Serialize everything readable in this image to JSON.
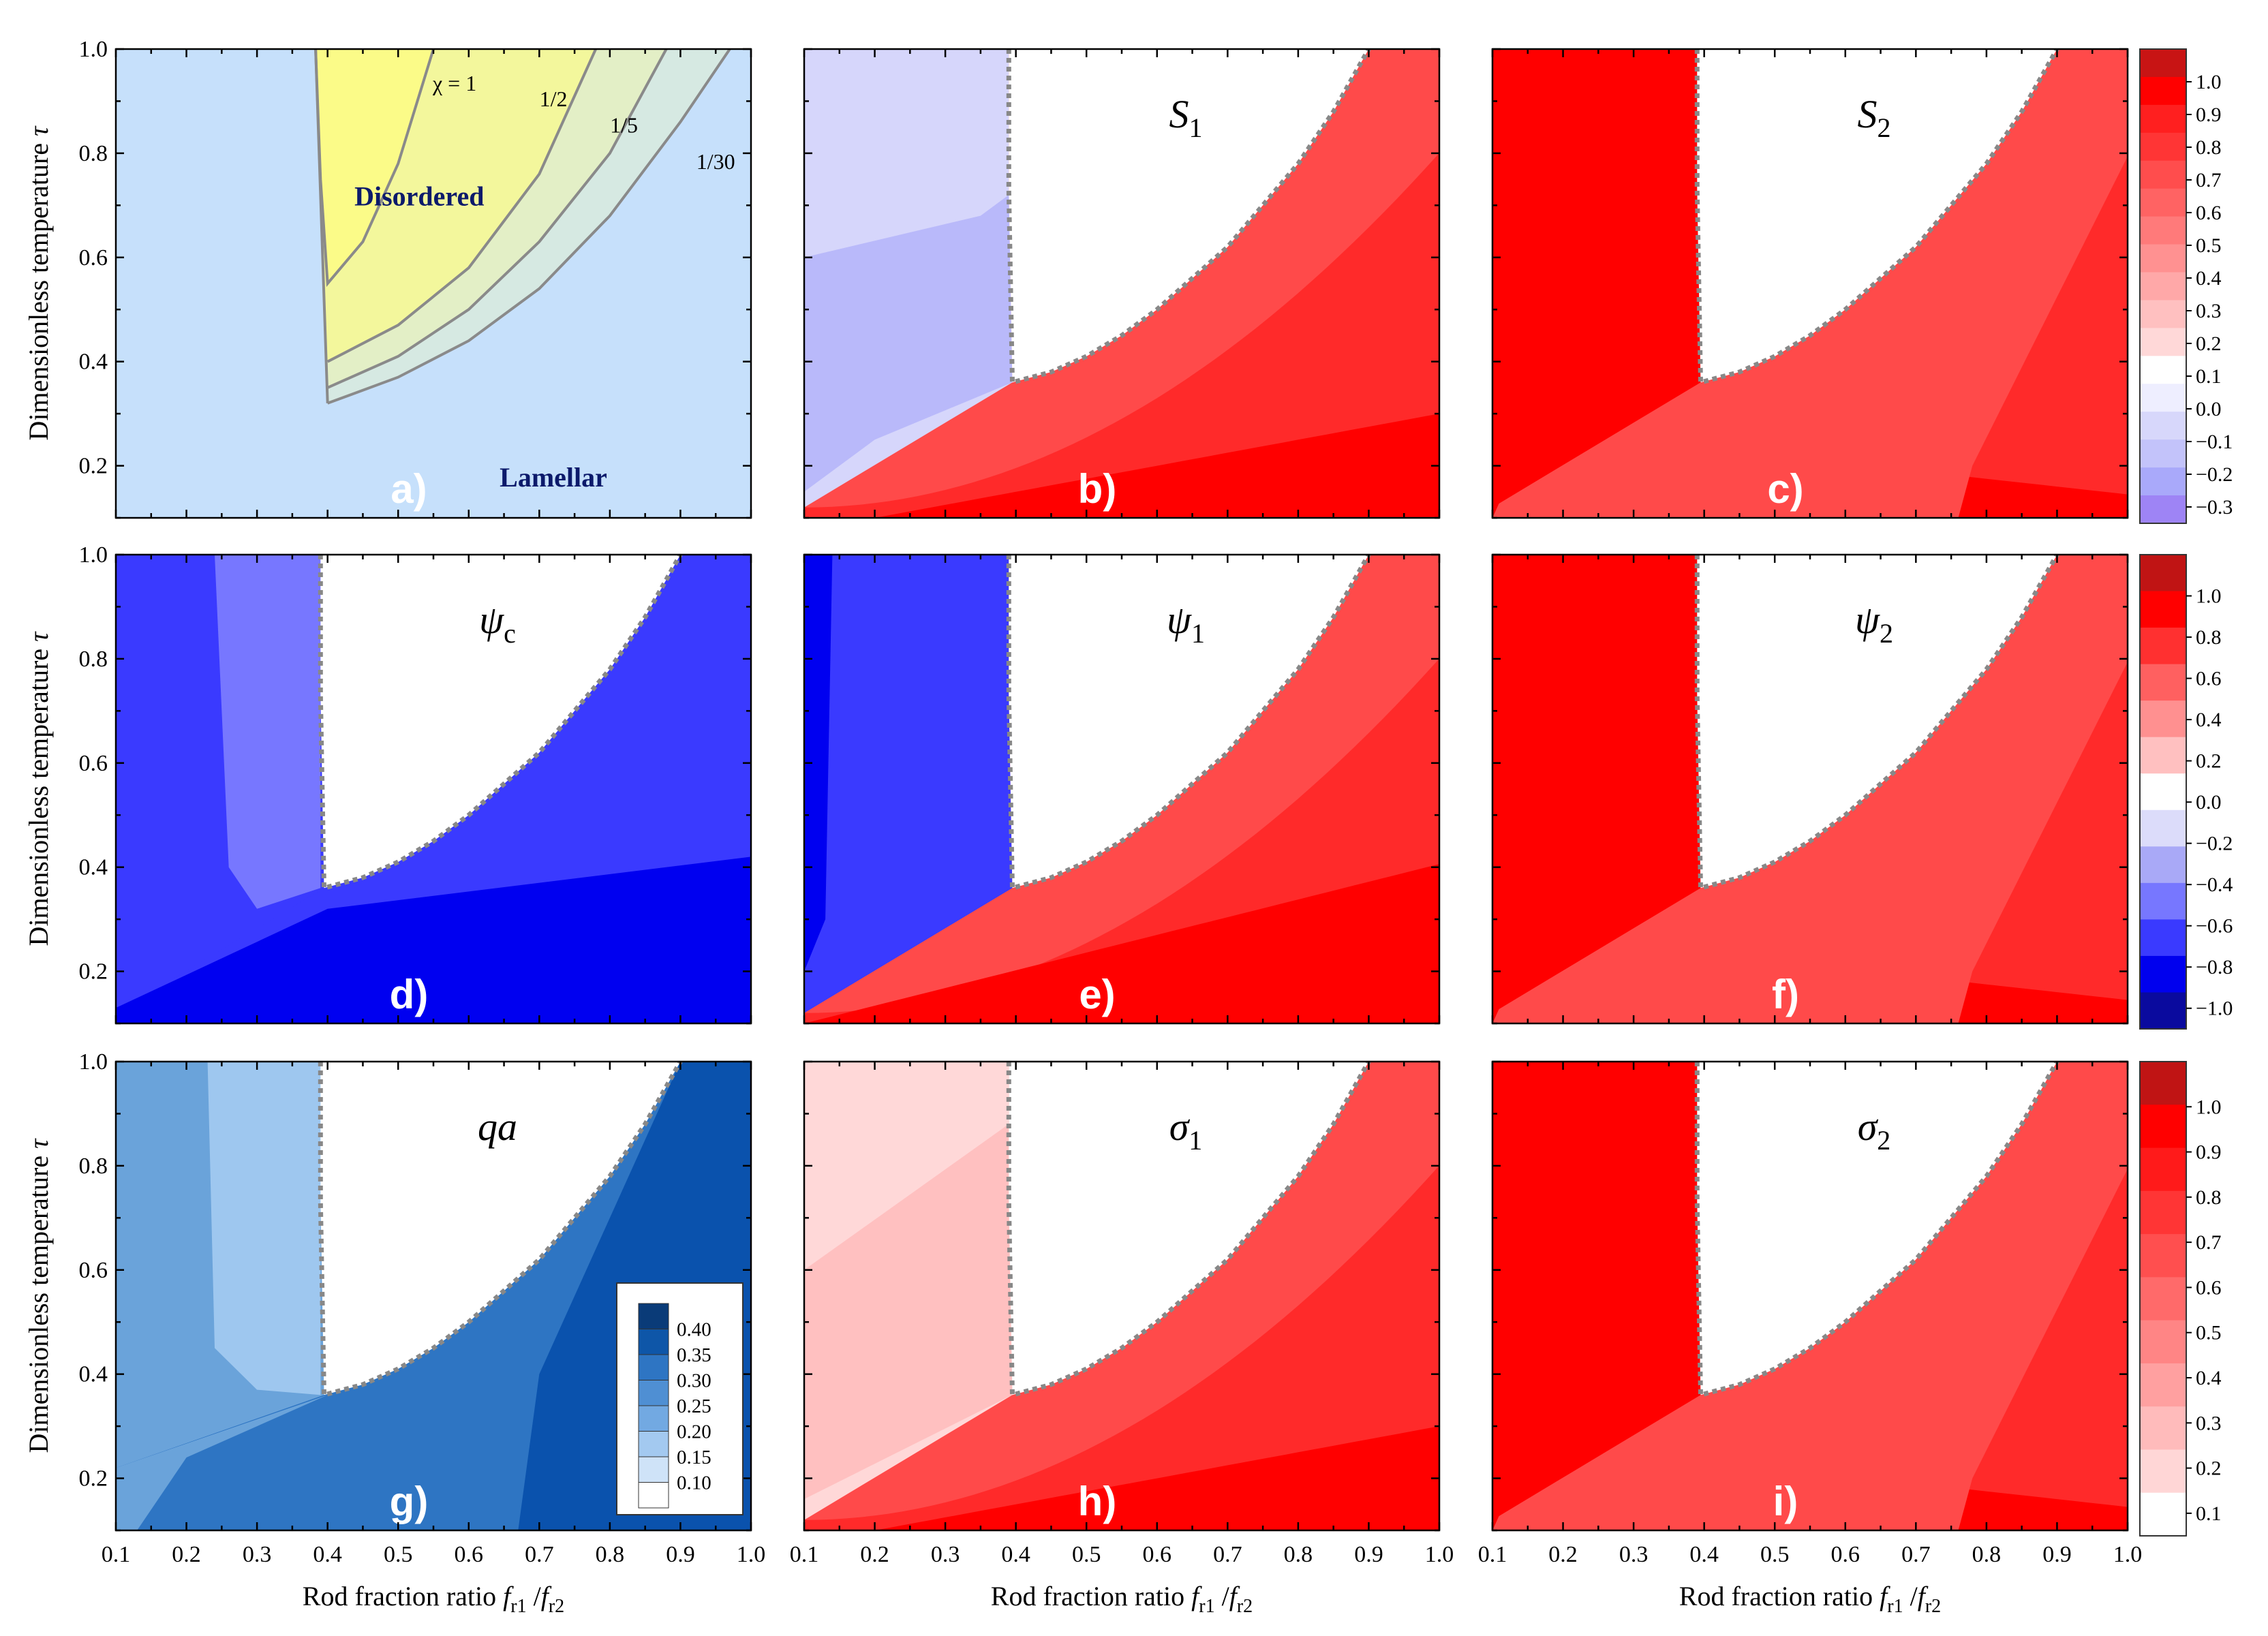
{
  "chart_data": {
    "type": "heatmap",
    "xlabel": "Rod fraction ratio f_r1 / f_r2",
    "xlabel_parts": {
      "main": "Rod fraction ratio ",
      "f1": "f",
      "s1": "r1",
      "slash": " /",
      "f2": "f",
      "s2": "r2"
    },
    "ylabel": "Dimensionless temperature τ",
    "ylabel_parts": {
      "main": "Dimensionless temperature ",
      "sym": "τ"
    },
    "xlim": [
      0.1,
      1.0
    ],
    "ylim": [
      0.1,
      1.0
    ],
    "x_ticks": [
      "0.1",
      "0.2",
      "0.3",
      "0.4",
      "0.5",
      "0.6",
      "0.7",
      "0.8",
      "0.9",
      "1.0"
    ],
    "y_ticks": [
      "0.2",
      "0.4",
      "0.6",
      "0.8",
      "1.0"
    ],
    "y_tick_values": [
      0.2,
      0.4,
      0.6,
      0.8,
      1.0
    ],
    "colors": {
      "lamellar_bg": "#c6e0fb",
      "disordered_core": "#fbfb88",
      "disordered_mid": "#f3f79c",
      "disordered_outer": "#e3efc6",
      "disordered_outer2": "#d6e9e2",
      "boundary_line": "#8a8a8a",
      "dotted_boundary": "#888888",
      "red_dark": "#ff0000",
      "red_1": "#ff2a2a",
      "red_2": "#ff4a4a",
      "red_3": "#ff7070",
      "red_4": "#ffa0a0",
      "red_5": "#ffc0c0",
      "red_6": "#ffd8d8",
      "blue_dark": "#0000f0",
      "blue_1": "#3a3aff",
      "blue_2": "#7777ff",
      "blue_3": "#b9b9fa",
      "blue_4": "#d6d6fb",
      "qa_1": "#6aa3da",
      "qa_2": "#9ec7ef",
      "qa_3": "#2e75c3",
      "qa_4": "#0a52ad"
    },
    "panels": [
      {
        "id": "a",
        "letter": "a)",
        "title": "",
        "sub": ""
      },
      {
        "id": "b",
        "letter": "b)",
        "title": "S",
        "sub": "1"
      },
      {
        "id": "c",
        "letter": "c)",
        "title": "S",
        "sub": "2"
      },
      {
        "id": "d",
        "letter": "d)",
        "title": "ψ",
        "sub": "c"
      },
      {
        "id": "e",
        "letter": "e)",
        "title": "ψ",
        "sub": "1"
      },
      {
        "id": "f",
        "letter": "f)",
        "title": "ψ",
        "sub": "2"
      },
      {
        "id": "g",
        "letter": "g)",
        "title": "qa",
        "sub": ""
      },
      {
        "id": "h",
        "letter": "h)",
        "title": "σ",
        "sub": "1"
      },
      {
        "id": "i",
        "letter": "i)",
        "title": "σ",
        "sub": "2"
      }
    ],
    "phase_diagram": {
      "regions": [
        "Disordered",
        "Lamellar"
      ],
      "curves": [
        {
          "chi": "χ = 1",
          "label": "χ = 1",
          "points": [
            [
              0.383,
              1.0
            ],
            [
              0.39,
              0.75
            ],
            [
              0.4,
              0.55
            ],
            [
              0.45,
              0.63
            ],
            [
              0.5,
              0.78
            ],
            [
              0.55,
              1.0
            ]
          ]
        },
        {
          "chi": "1/2",
          "label": "1/2",
          "points": [
            [
              0.4,
              0.4
            ],
            [
              0.5,
              0.47
            ],
            [
              0.6,
              0.58
            ],
            [
              0.7,
              0.76
            ],
            [
              0.78,
              1.0
            ]
          ]
        },
        {
          "chi": "1/5",
          "label": "1/5",
          "points": [
            [
              0.4,
              0.35
            ],
            [
              0.5,
              0.41
            ],
            [
              0.6,
              0.5
            ],
            [
              0.7,
              0.63
            ],
            [
              0.8,
              0.8
            ],
            [
              0.88,
              1.0
            ]
          ]
        },
        {
          "chi": "1/30",
          "label": "1/30",
          "points": [
            [
              0.4,
              0.32
            ],
            [
              0.5,
              0.37
            ],
            [
              0.6,
              0.44
            ],
            [
              0.7,
              0.54
            ],
            [
              0.8,
              0.68
            ],
            [
              0.9,
              0.86
            ],
            [
              0.97,
              1.0
            ]
          ]
        }
      ],
      "wedge_left": [
        [
          0.383,
          1.0
        ],
        [
          0.4,
          0.32
        ]
      ]
    },
    "disordered_boundary": [
      [
        0.39,
        1.0
      ],
      [
        0.39,
        0.73
      ],
      [
        0.395,
        0.36
      ],
      [
        0.45,
        0.38
      ],
      [
        0.5,
        0.41
      ],
      [
        0.55,
        0.45
      ],
      [
        0.6,
        0.5
      ],
      [
        0.65,
        0.56
      ],
      [
        0.7,
        0.62
      ],
      [
        0.75,
        0.7
      ],
      [
        0.8,
        0.78
      ],
      [
        0.85,
        0.88
      ],
      [
        0.9,
        1.0
      ]
    ],
    "colorbars": [
      {
        "rows": "top",
        "labels": [
          "1.0",
          "0.9",
          "0.8",
          "0.7",
          "0.6",
          "0.5",
          "0.4",
          "0.3",
          "0.2",
          "0.1",
          "0.0",
          "−0.1",
          "−0.2",
          "−0.3"
        ],
        "range": [
          -0.35,
          1.1
        ]
      },
      {
        "rows": "middle",
        "labels": [
          "1.0",
          "0.8",
          "0.6",
          "0.4",
          "0.2",
          "0.0",
          "−0.2",
          "−0.4",
          "−0.6",
          "−0.8",
          "−1.0"
        ],
        "range": [
          -1.1,
          1.2
        ]
      },
      {
        "rows": "bottom",
        "labels": [
          "1.0",
          "0.9",
          "0.8",
          "0.7",
          "0.6",
          "0.5",
          "0.4",
          "0.3",
          "0.2",
          "0.1"
        ],
        "range": [
          0.05,
          1.1
        ]
      }
    ],
    "qa_legend": {
      "labels": [
        "0.40",
        "0.35",
        "0.30",
        "0.25",
        "0.20",
        "0.15",
        "0.10"
      ]
    }
  }
}
